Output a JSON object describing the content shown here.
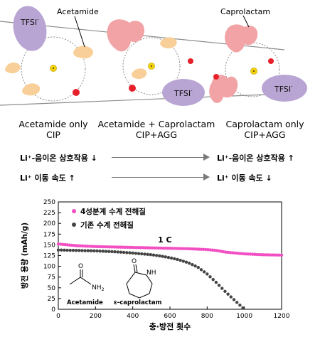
{
  "top": {
    "acetamide_label": "Acetamide",
    "caprolactam_label": "Caprolactam",
    "tfsi_label": "TFSI",
    "tfsi_sup": "-"
  },
  "columns": [
    {
      "line1": "Acetamide only",
      "line2": "CIP"
    },
    {
      "line1": "Acetamide + Caprolactam",
      "line2": "CIP+AGG"
    },
    {
      "line1": "Caprolactam only",
      "line2": "CIP+AGG"
    }
  ],
  "rows": {
    "left1": "Li⁺-음이온 상호작용 ↓",
    "right1": "Li⁺-음이온 상호작용 ↑",
    "left2": "Li⁺ 이동 속도 ↑",
    "right2": "Li⁺ 이동 속도 ↓"
  },
  "inset": {
    "cycle_rate": "1 C",
    "mol1_label": "Acetamide",
    "mol1_atom1": "O",
    "mol1_atom2": "NH",
    "mol1_atom2_sub": "2",
    "mol2_label": "ε-caprolactam",
    "mol2_atom1": "O",
    "mol2_atom2": "NH"
  },
  "colors": {
    "tfsi": "#b9a5d3",
    "caprolactam": "#f2a3a5",
    "acetamide": "#f8cf98",
    "li_ion": "#e8202a",
    "center_dot": "#f5d50d",
    "series_pink": "#f24fc3",
    "series_dark": "#444444"
  },
  "chart_data": {
    "type": "scatter",
    "xlabel": "충·방전 횟수",
    "ylabel": "방전 용량 (mAh/g)",
    "xlim": [
      0,
      1200
    ],
    "ylim": [
      0,
      250
    ],
    "xticks": [
      0,
      200,
      400,
      600,
      800,
      1000,
      1200
    ],
    "yticks": [
      0,
      25,
      50,
      75,
      100,
      125,
      150,
      175,
      200,
      225,
      250
    ],
    "legend_position": "top-left",
    "series": [
      {
        "name": "4성분계 수계 전해질",
        "color": "#f24fc3",
        "x": [
          0,
          100,
          200,
          300,
          400,
          500,
          600,
          700,
          800,
          850,
          900,
          950,
          1000,
          1100,
          1200
        ],
        "y": [
          152,
          148,
          146,
          145,
          144,
          143,
          142,
          141,
          139,
          137,
          133,
          131,
          129,
          127,
          126
        ]
      },
      {
        "name": "기존 수계 전해질",
        "color": "#444444",
        "x": [
          0,
          100,
          200,
          300,
          400,
          500,
          550,
          600,
          650,
          700,
          750,
          800,
          850,
          900,
          950,
          980,
          1000
        ],
        "y": [
          138,
          137,
          136,
          134,
          131,
          127,
          124,
          120,
          115,
          108,
          98,
          82,
          62,
          40,
          20,
          8,
          0
        ]
      }
    ]
  }
}
